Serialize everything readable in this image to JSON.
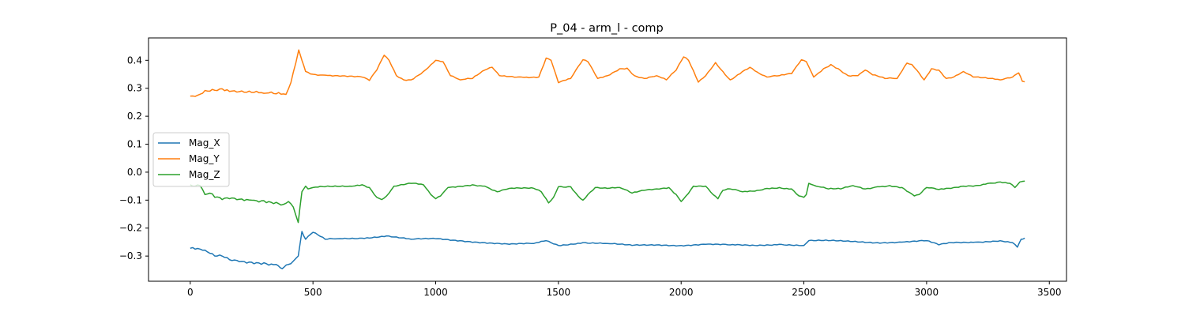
{
  "chart_data": {
    "type": "line",
    "title": "P_04 - arm_l - comp",
    "xlabel": "",
    "ylabel": "",
    "xlim": [
      -170,
      3570
    ],
    "ylim": [
      -0.39,
      0.48
    ],
    "xticks": [
      0,
      500,
      1000,
      1500,
      2000,
      2500,
      3000,
      3500
    ],
    "yticks": [
      -0.3,
      -0.2,
      -0.1,
      0.0,
      0.1,
      0.2,
      0.3,
      0.4
    ],
    "xtick_labels": [
      "0",
      "500",
      "1000",
      "1500",
      "2000",
      "2500",
      "3000",
      "3500"
    ],
    "ytick_labels": [
      "−0.3",
      "−0.2",
      "−0.1",
      "0.0",
      "0.1",
      "0.2",
      "0.3",
      "0.4"
    ],
    "grid": false,
    "legend_position": "center-left",
    "series": [
      {
        "name": "Mag_X",
        "color": "#1f77b4",
        "points": [
          [
            0,
            -0.272
          ],
          [
            40,
            -0.275
          ],
          [
            70,
            -0.285
          ],
          [
            100,
            -0.3
          ],
          [
            130,
            -0.3
          ],
          [
            160,
            -0.313
          ],
          [
            200,
            -0.32
          ],
          [
            250,
            -0.322
          ],
          [
            300,
            -0.324
          ],
          [
            350,
            -0.33
          ],
          [
            375,
            -0.345
          ],
          [
            400,
            -0.33
          ],
          [
            420,
            -0.318
          ],
          [
            440,
            -0.3
          ],
          [
            455,
            -0.212
          ],
          [
            470,
            -0.24
          ],
          [
            500,
            -0.215
          ],
          [
            550,
            -0.24
          ],
          [
            600,
            -0.238
          ],
          [
            700,
            -0.236
          ],
          [
            800,
            -0.228
          ],
          [
            900,
            -0.24
          ],
          [
            1000,
            -0.238
          ],
          [
            1100,
            -0.245
          ],
          [
            1200,
            -0.252
          ],
          [
            1300,
            -0.258
          ],
          [
            1400,
            -0.255
          ],
          [
            1450,
            -0.245
          ],
          [
            1500,
            -0.262
          ],
          [
            1600,
            -0.252
          ],
          [
            1700,
            -0.255
          ],
          [
            1800,
            -0.262
          ],
          [
            1900,
            -0.26
          ],
          [
            2000,
            -0.262
          ],
          [
            2100,
            -0.258
          ],
          [
            2200,
            -0.26
          ],
          [
            2300,
            -0.262
          ],
          [
            2400,
            -0.258
          ],
          [
            2500,
            -0.262
          ],
          [
            2520,
            -0.245
          ],
          [
            2600,
            -0.245
          ],
          [
            2700,
            -0.248
          ],
          [
            2800,
            -0.252
          ],
          [
            2900,
            -0.25
          ],
          [
            3000,
            -0.245
          ],
          [
            3050,
            -0.26
          ],
          [
            3100,
            -0.252
          ],
          [
            3200,
            -0.25
          ],
          [
            3300,
            -0.245
          ],
          [
            3350,
            -0.252
          ],
          [
            3370,
            -0.268
          ],
          [
            3385,
            -0.24
          ],
          [
            3400,
            -0.236
          ]
        ]
      },
      {
        "name": "Mag_Y",
        "color": "#ff7f0e",
        "points": [
          [
            0,
            0.272
          ],
          [
            30,
            0.275
          ],
          [
            60,
            0.292
          ],
          [
            90,
            0.296
          ],
          [
            130,
            0.298
          ],
          [
            170,
            0.29
          ],
          [
            200,
            0.288
          ],
          [
            250,
            0.285
          ],
          [
            300,
            0.282
          ],
          [
            350,
            0.28
          ],
          [
            390,
            0.278
          ],
          [
            410,
            0.32
          ],
          [
            430,
            0.39
          ],
          [
            442,
            0.437
          ],
          [
            455,
            0.4
          ],
          [
            470,
            0.36
          ],
          [
            500,
            0.35
          ],
          [
            550,
            0.347
          ],
          [
            600,
            0.345
          ],
          [
            700,
            0.34
          ],
          [
            730,
            0.328
          ],
          [
            760,
            0.365
          ],
          [
            790,
            0.418
          ],
          [
            810,
            0.4
          ],
          [
            840,
            0.345
          ],
          [
            870,
            0.33
          ],
          [
            900,
            0.33
          ],
          [
            950,
            0.36
          ],
          [
            1000,
            0.4
          ],
          [
            1030,
            0.395
          ],
          [
            1060,
            0.345
          ],
          [
            1100,
            0.33
          ],
          [
            1150,
            0.335
          ],
          [
            1200,
            0.365
          ],
          [
            1230,
            0.375
          ],
          [
            1260,
            0.345
          ],
          [
            1350,
            0.34
          ],
          [
            1420,
            0.34
          ],
          [
            1450,
            0.408
          ],
          [
            1470,
            0.4
          ],
          [
            1500,
            0.32
          ],
          [
            1550,
            0.335
          ],
          [
            1600,
            0.402
          ],
          [
            1620,
            0.395
          ],
          [
            1660,
            0.335
          ],
          [
            1700,
            0.345
          ],
          [
            1750,
            0.37
          ],
          [
            1780,
            0.372
          ],
          [
            1810,
            0.345
          ],
          [
            1850,
            0.335
          ],
          [
            1900,
            0.345
          ],
          [
            1940,
            0.33
          ],
          [
            1980,
            0.365
          ],
          [
            2010,
            0.412
          ],
          [
            2030,
            0.4
          ],
          [
            2070,
            0.322
          ],
          [
            2100,
            0.345
          ],
          [
            2140,
            0.392
          ],
          [
            2170,
            0.36
          ],
          [
            2200,
            0.33
          ],
          [
            2250,
            0.36
          ],
          [
            2280,
            0.375
          ],
          [
            2320,
            0.352
          ],
          [
            2350,
            0.34
          ],
          [
            2400,
            0.345
          ],
          [
            2450,
            0.352
          ],
          [
            2490,
            0.402
          ],
          [
            2510,
            0.395
          ],
          [
            2540,
            0.34
          ],
          [
            2580,
            0.37
          ],
          [
            2610,
            0.385
          ],
          [
            2640,
            0.37
          ],
          [
            2680,
            0.345
          ],
          [
            2720,
            0.345
          ],
          [
            2750,
            0.365
          ],
          [
            2780,
            0.348
          ],
          [
            2830,
            0.335
          ],
          [
            2880,
            0.335
          ],
          [
            2920,
            0.39
          ],
          [
            2940,
            0.385
          ],
          [
            2960,
            0.365
          ],
          [
            2990,
            0.33
          ],
          [
            3020,
            0.37
          ],
          [
            3050,
            0.365
          ],
          [
            3080,
            0.335
          ],
          [
            3110,
            0.34
          ],
          [
            3150,
            0.36
          ],
          [
            3190,
            0.34
          ],
          [
            3250,
            0.335
          ],
          [
            3300,
            0.33
          ],
          [
            3350,
            0.34
          ],
          [
            3375,
            0.355
          ],
          [
            3390,
            0.325
          ],
          [
            3400,
            0.323
          ]
        ]
      },
      {
        "name": "Mag_Z",
        "color": "#2ca02c",
        "points": [
          [
            0,
            -0.045
          ],
          [
            20,
            -0.05
          ],
          [
            40,
            -0.048
          ],
          [
            60,
            -0.08
          ],
          [
            80,
            -0.075
          ],
          [
            100,
            -0.09
          ],
          [
            130,
            -0.098
          ],
          [
            160,
            -0.095
          ],
          [
            200,
            -0.097
          ],
          [
            250,
            -0.1
          ],
          [
            300,
            -0.102
          ],
          [
            350,
            -0.108
          ],
          [
            380,
            -0.115
          ],
          [
            400,
            -0.105
          ],
          [
            420,
            -0.125
          ],
          [
            440,
            -0.18
          ],
          [
            455,
            -0.07
          ],
          [
            470,
            -0.05
          ],
          [
            480,
            -0.06
          ],
          [
            500,
            -0.055
          ],
          [
            550,
            -0.052
          ],
          [
            650,
            -0.05
          ],
          [
            700,
            -0.045
          ],
          [
            730,
            -0.055
          ],
          [
            760,
            -0.09
          ],
          [
            780,
            -0.098
          ],
          [
            800,
            -0.085
          ],
          [
            830,
            -0.05
          ],
          [
            900,
            -0.04
          ],
          [
            950,
            -0.045
          ],
          [
            980,
            -0.08
          ],
          [
            1000,
            -0.095
          ],
          [
            1020,
            -0.085
          ],
          [
            1050,
            -0.055
          ],
          [
            1150,
            -0.045
          ],
          [
            1200,
            -0.05
          ],
          [
            1250,
            -0.07
          ],
          [
            1300,
            -0.058
          ],
          [
            1400,
            -0.058
          ],
          [
            1430,
            -0.07
          ],
          [
            1460,
            -0.11
          ],
          [
            1480,
            -0.09
          ],
          [
            1500,
            -0.052
          ],
          [
            1550,
            -0.052
          ],
          [
            1580,
            -0.085
          ],
          [
            1600,
            -0.1
          ],
          [
            1620,
            -0.08
          ],
          [
            1650,
            -0.055
          ],
          [
            1700,
            -0.058
          ],
          [
            1750,
            -0.055
          ],
          [
            1800,
            -0.075
          ],
          [
            1850,
            -0.065
          ],
          [
            1900,
            -0.06
          ],
          [
            1950,
            -0.055
          ],
          [
            1980,
            -0.08
          ],
          [
            2000,
            -0.105
          ],
          [
            2020,
            -0.085
          ],
          [
            2050,
            -0.05
          ],
          [
            2100,
            -0.05
          ],
          [
            2130,
            -0.08
          ],
          [
            2150,
            -0.095
          ],
          [
            2170,
            -0.065
          ],
          [
            2200,
            -0.06
          ],
          [
            2250,
            -0.07
          ],
          [
            2300,
            -0.068
          ],
          [
            2350,
            -0.058
          ],
          [
            2400,
            -0.055
          ],
          [
            2450,
            -0.06
          ],
          [
            2480,
            -0.085
          ],
          [
            2500,
            -0.09
          ],
          [
            2510,
            -0.08
          ],
          [
            2520,
            -0.04
          ],
          [
            2550,
            -0.05
          ],
          [
            2600,
            -0.06
          ],
          [
            2650,
            -0.06
          ],
          [
            2700,
            -0.048
          ],
          [
            2750,
            -0.06
          ],
          [
            2800,
            -0.052
          ],
          [
            2850,
            -0.048
          ],
          [
            2900,
            -0.055
          ],
          [
            2950,
            -0.085
          ],
          [
            2970,
            -0.08
          ],
          [
            3000,
            -0.055
          ],
          [
            3050,
            -0.062
          ],
          [
            3100,
            -0.058
          ],
          [
            3150,
            -0.05
          ],
          [
            3200,
            -0.048
          ],
          [
            3250,
            -0.04
          ],
          [
            3300,
            -0.035
          ],
          [
            3340,
            -0.04
          ],
          [
            3360,
            -0.055
          ],
          [
            3380,
            -0.035
          ],
          [
            3400,
            -0.032
          ]
        ]
      }
    ]
  }
}
